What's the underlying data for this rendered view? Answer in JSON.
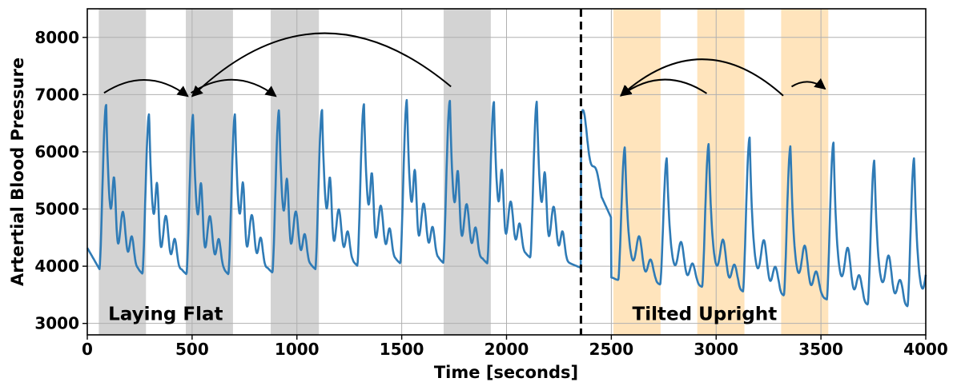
{
  "chart_data": {
    "type": "line",
    "title": "",
    "xlabel": "Time [seconds]",
    "ylabel": "Artertial Blood Pressure",
    "xlim": [
      0,
      4000
    ],
    "ylim": [
      2800,
      8500
    ],
    "xticks": [
      0,
      500,
      1000,
      1500,
      2000,
      2500,
      3000,
      3500,
      4000
    ],
    "yticks": [
      3000,
      4000,
      5000,
      6000,
      7000,
      8000
    ],
    "grid": true,
    "series_color": "#2f7bb6",
    "divider_x": 2355,
    "regions": {
      "laying_flat": {
        "label": "Laying Flat",
        "color": "#d3d3d3",
        "spans": [
          [
            55,
            280
          ],
          [
            470,
            695
          ],
          [
            875,
            1105
          ],
          [
            1700,
            1925
          ]
        ]
      },
      "tilted_upright": {
        "label": "Tilted Upright",
        "color": "#ffe4bc",
        "spans": [
          [
            2510,
            2735
          ],
          [
            2910,
            3135
          ],
          [
            3310,
            3535
          ]
        ]
      }
    },
    "beats": {
      "flat": [
        {
          "t": 90,
          "peak": 6820,
          "trough": 3950
        },
        {
          "t": 295,
          "peak": 6660,
          "trough": 3870
        },
        {
          "t": 505,
          "peak": 6650,
          "trough": 3860
        },
        {
          "t": 705,
          "peak": 6660,
          "trough": 3860
        },
        {
          "t": 915,
          "peak": 6730,
          "trough": 3890
        },
        {
          "t": 1120,
          "peak": 6730,
          "trough": 3950
        },
        {
          "t": 1320,
          "peak": 6830,
          "trough": 4010
        },
        {
          "t": 1525,
          "peak": 6910,
          "trough": 4050
        },
        {
          "t": 1730,
          "peak": 6890,
          "trough": 4060
        },
        {
          "t": 1940,
          "peak": 6870,
          "trough": 4050
        },
        {
          "t": 2145,
          "peak": 6880,
          "trough": 4150
        }
      ],
      "upright": [
        {
          "t": 2565,
          "peak": 6080,
          "trough": 3760
        },
        {
          "t": 2765,
          "peak": 5890,
          "trough": 3680
        },
        {
          "t": 2965,
          "peak": 6140,
          "trough": 3640
        },
        {
          "t": 3160,
          "peak": 6250,
          "trough": 3560
        },
        {
          "t": 3355,
          "peak": 6100,
          "trough": 3490
        },
        {
          "t": 3560,
          "peak": 6160,
          "trough": 3420
        },
        {
          "t": 3755,
          "peak": 5850,
          "trough": 3330
        },
        {
          "t": 3945,
          "peak": 5890,
          "trough": 3300
        }
      ]
    },
    "annotations": [
      {
        "label": "Laying Flat",
        "x": 100,
        "y": 3000
      },
      {
        "label": "Tilted Upright",
        "x": 2600,
        "y": 3000
      }
    ],
    "arrows": [
      {
        "from": [
          80,
          7030
        ],
        "to": [
          480,
          6970
        ],
        "rad": 0.35
      },
      {
        "from": [
          495,
          7030
        ],
        "to": [
          900,
          6970
        ],
        "rad": 0.35
      },
      {
        "from": [
          1735,
          7140
        ],
        "to": [
          500,
          6970
        ],
        "rad": -0.45
      },
      {
        "from": [
          2955,
          7020
        ],
        "to": [
          2545,
          6980
        ],
        "rad": -0.35
      },
      {
        "from": [
          3320,
          6980
        ],
        "to": [
          2545,
          6980
        ],
        "rad": -0.45
      },
      {
        "from": [
          3360,
          7140
        ],
        "to": [
          3520,
          7100
        ],
        "rad": 0.35
      }
    ]
  }
}
